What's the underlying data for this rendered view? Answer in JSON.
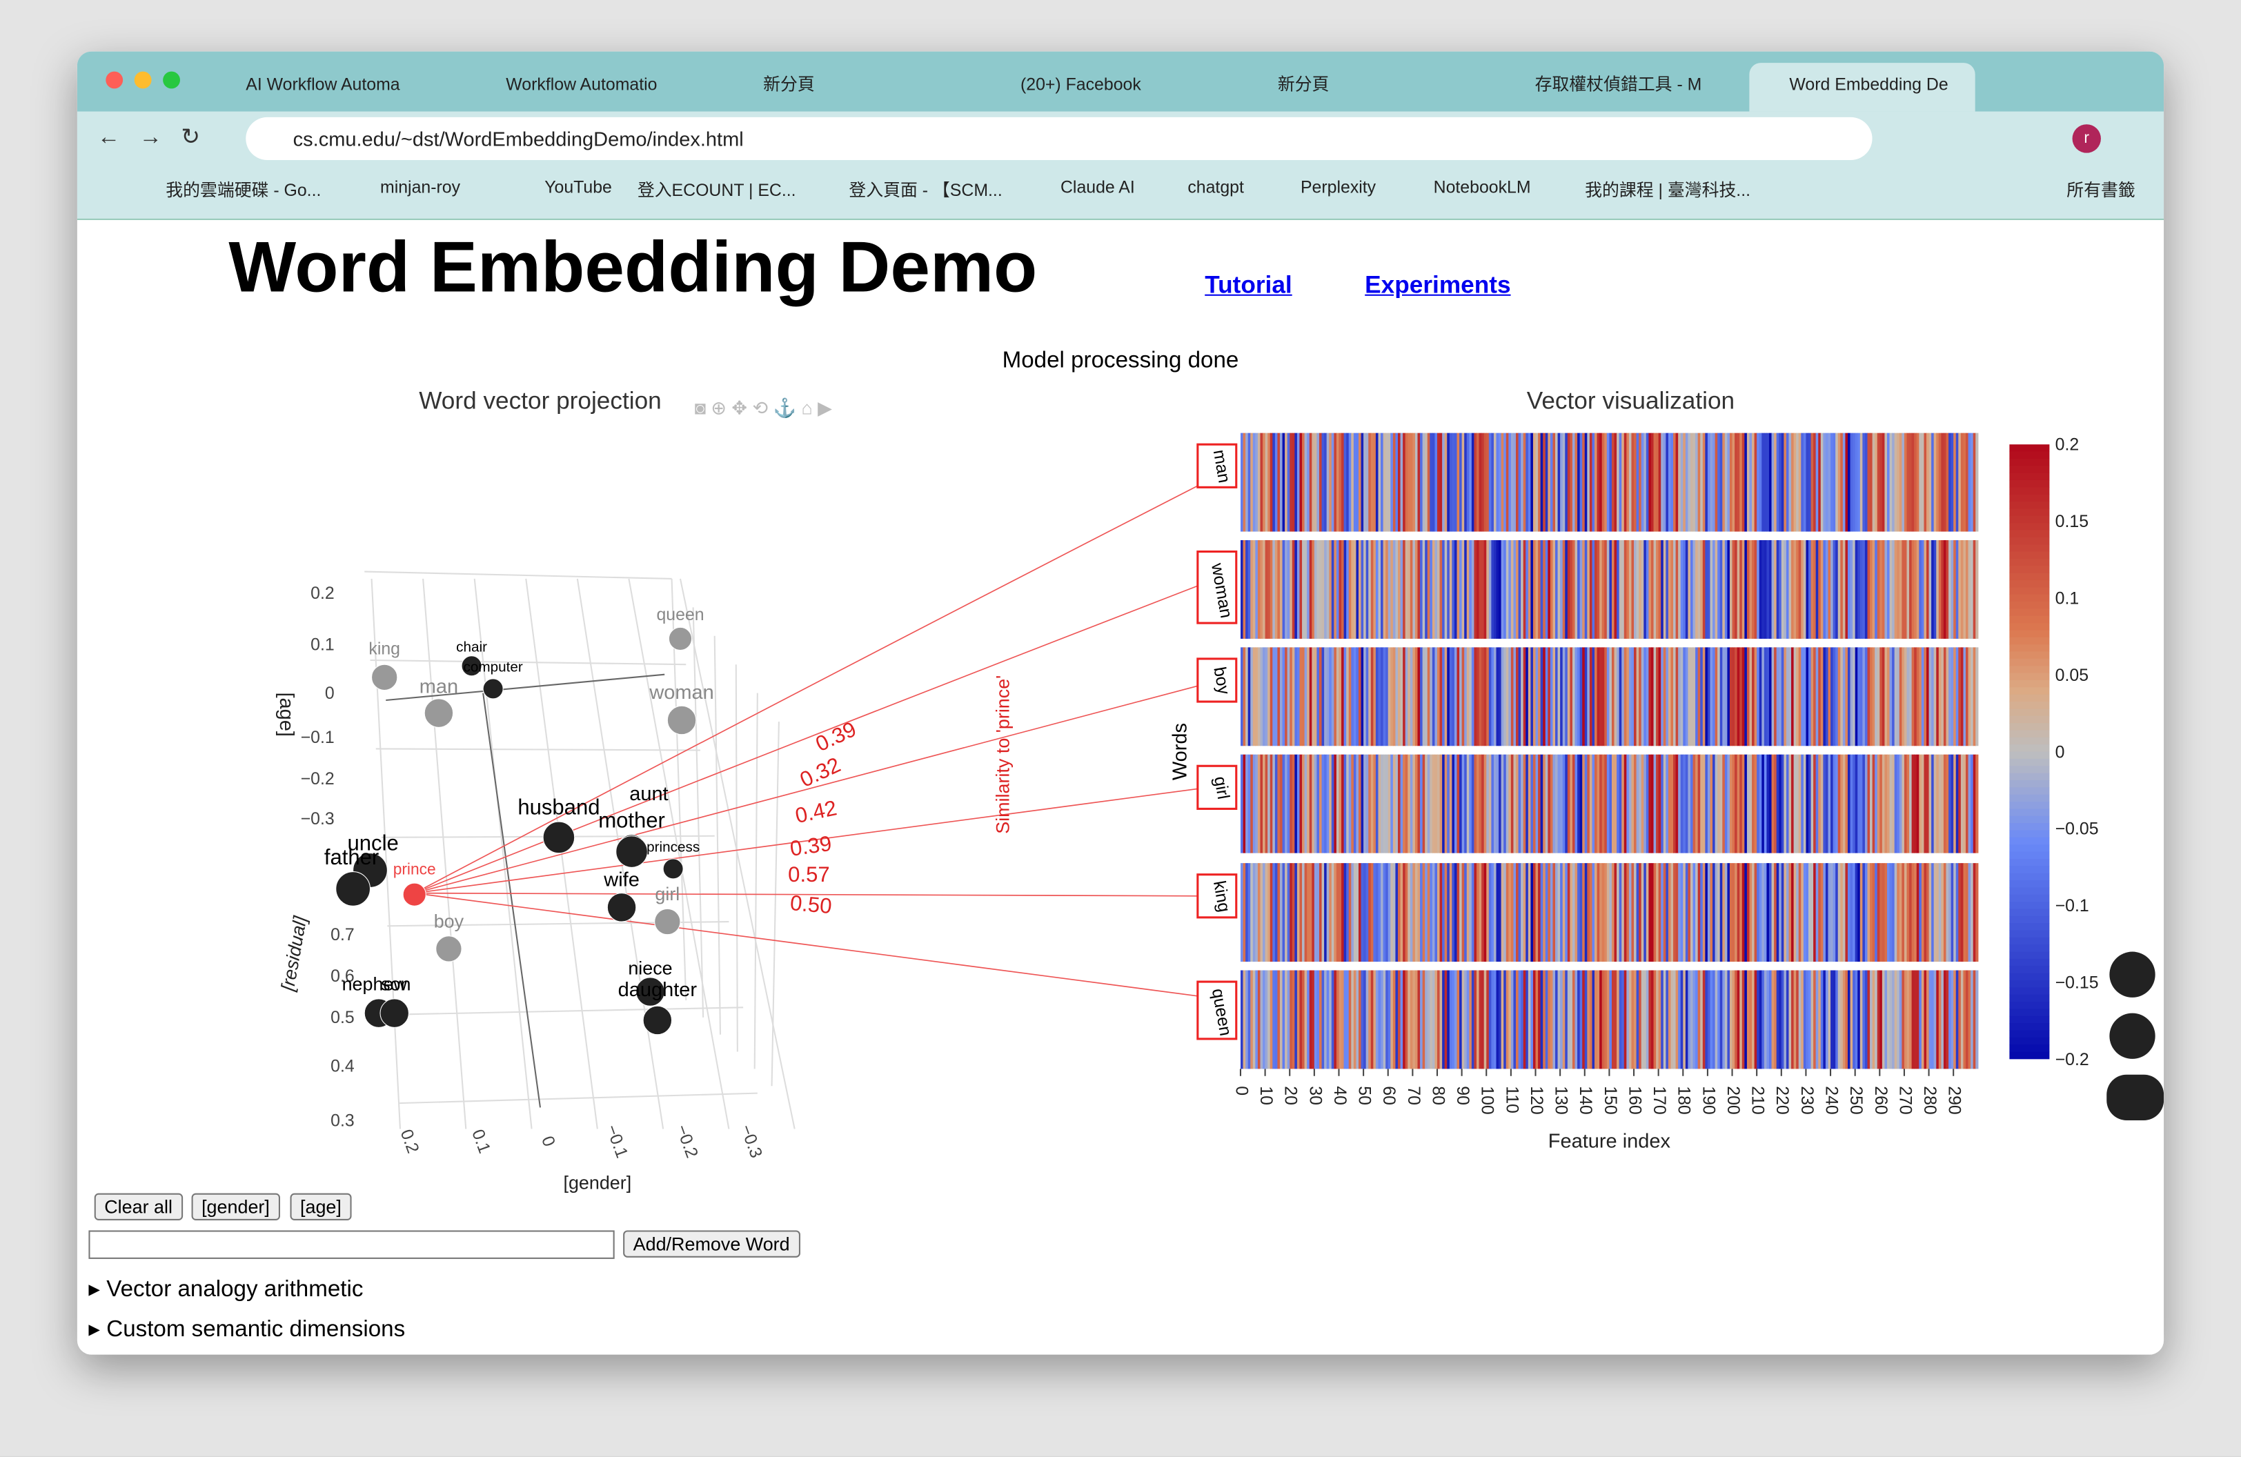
{
  "browser": {
    "tabs": [
      "AI Workflow Automa",
      "Workflow Automatio",
      "新分頁",
      "(20+) Facebook",
      "新分頁",
      "存取權杖偵錯工具 - M",
      "Word Embedding De"
    ],
    "url": "cs.cmu.edu/~dst/WordEmbeddingDemo/index.html",
    "bookmarks": [
      "我的雲端硬碟 - Go...",
      "minjan-roy",
      "YouTube",
      "登入ECOUNT | EC...",
      "登入頁面 - 【SCM...",
      "Claude AI",
      "chatgpt",
      "Perplexity",
      "NotebookLM",
      "我的課程 | 臺灣科技..."
    ],
    "all_bookmarks": "所有書籤",
    "profile": "r"
  },
  "page": {
    "title": "Word Embedding Demo",
    "links": [
      "Tutorial",
      "Experiments"
    ],
    "status": "Model processing done",
    "projection": {
      "title": "Word vector projection",
      "age_label": "[age]",
      "residual_label": "[residual]",
      "gender_label": "[gender]",
      "age_ticks": [
        "0.2",
        "0.1",
        "0",
        "−0.1",
        "−0.2",
        "−0.3"
      ],
      "residual_ticks": [
        "0.7",
        "0.6",
        "0.5",
        "0.4",
        "0.3"
      ],
      "gender_ticks": [
        "0.2",
        "0.1",
        "0",
        "−0.1",
        "−0.2",
        "−0.3"
      ],
      "words": [
        "king",
        "chair",
        "computer",
        "queen",
        "man",
        "woman",
        "husband",
        "aunt",
        "mother",
        "princess",
        "uncle",
        "father",
        "prince",
        "wife",
        "girl",
        "boy",
        "nephew",
        "son",
        "niece",
        "daughter"
      ],
      "similarity_label": "Similarity to 'prince'",
      "similarities": [
        "0.39",
        "0.32",
        "0.42",
        "0.39",
        "0.57",
        "0.50"
      ]
    },
    "vector": {
      "title": "Vector visualization",
      "y_label": "Words",
      "x_label": "Feature index",
      "words": [
        "man",
        "woman",
        "boy",
        "girl",
        "king",
        "queen"
      ],
      "x_ticks": [
        "0",
        "10",
        "20",
        "30",
        "40",
        "50",
        "60",
        "70",
        "80",
        "90",
        "100",
        "110",
        "120",
        "130",
        "140",
        "150",
        "160",
        "170",
        "180",
        "190",
        "200",
        "210",
        "220",
        "230",
        "240",
        "250",
        "260",
        "270",
        "280",
        "290"
      ],
      "colorbar_ticks": [
        "0.2",
        "0.15",
        "0.1",
        "0.05",
        "0",
        "−0.05",
        "−0.1",
        "−0.15",
        "−0.2"
      ]
    },
    "buttons": [
      "Clear all",
      "[gender]",
      "[age]"
    ],
    "add_button": "Add/Remove Word",
    "details": [
      "Vector analogy arithmetic",
      "Custom semantic dimensions"
    ]
  }
}
